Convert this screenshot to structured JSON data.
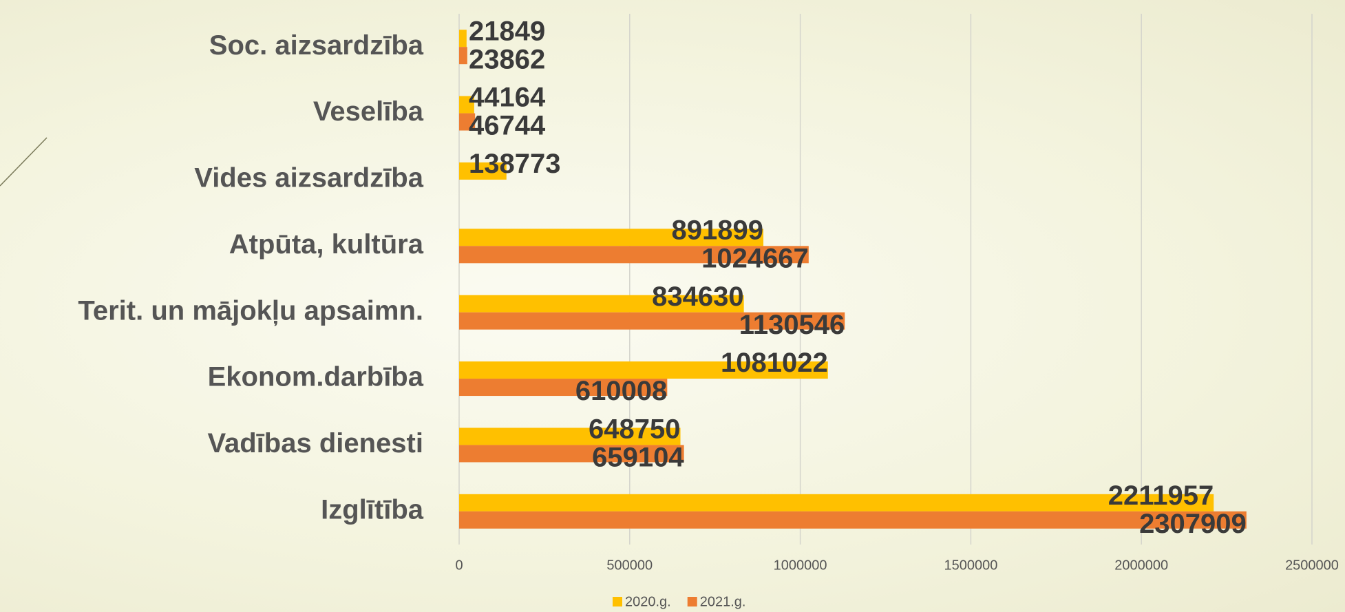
{
  "chart_data": {
    "type": "hbar",
    "categories": [
      "Soc. aizsardzība",
      "Veselība",
      "Vides aizsardzība",
      "Atpūta, kultūra",
      "Terit. un mājokļu apsaimn.",
      "Ekonom.darbība",
      "Vadības dienesti",
      "Izglītība"
    ],
    "series": [
      {
        "name": "2020.g.",
        "color": "#ffc000",
        "values": [
          21849,
          44164,
          138773,
          891899,
          834630,
          1081022,
          648750,
          2211957
        ]
      },
      {
        "name": "2021.g.",
        "color": "#ed7d31",
        "values": [
          23862,
          46744,
          null,
          1024667,
          1130546,
          610008,
          659104,
          2307909
        ]
      }
    ],
    "xlim": [
      0,
      2500000
    ],
    "xticks": [
      0,
      500000,
      1000000,
      1500000,
      2000000,
      2500000
    ],
    "grid": true,
    "legend": "bottom"
  }
}
